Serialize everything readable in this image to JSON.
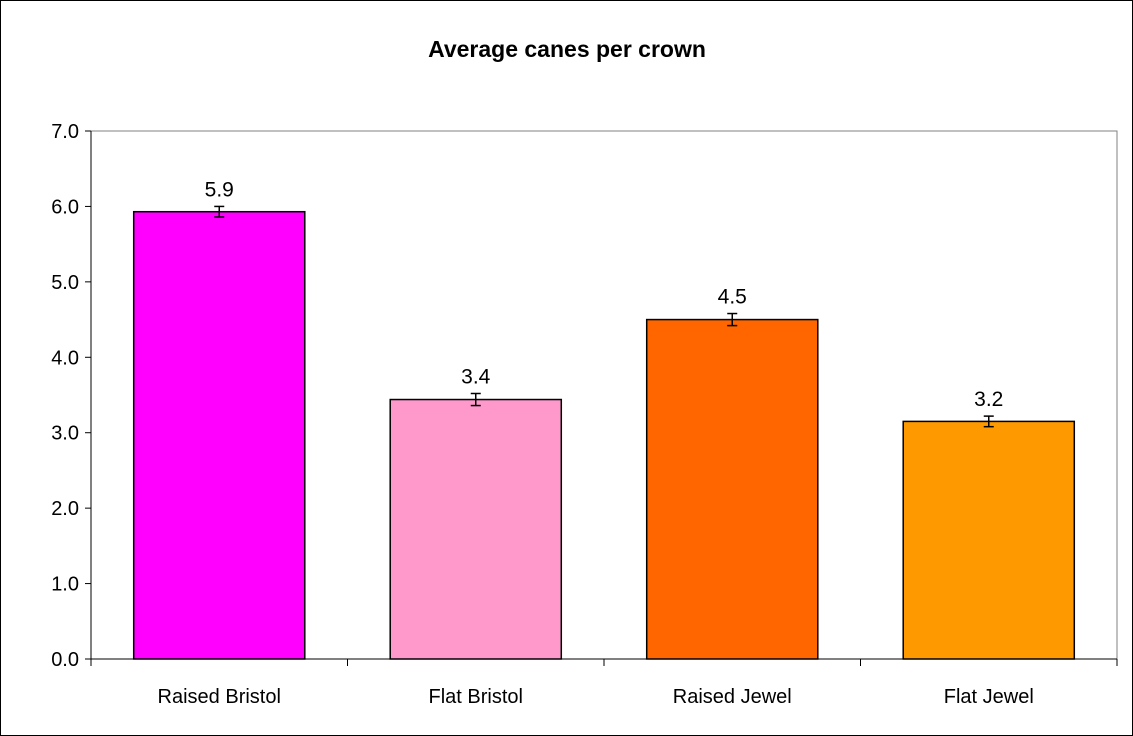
{
  "chart_data": {
    "type": "bar",
    "title": "Average canes per crown",
    "xlabel": "",
    "ylabel": "",
    "categories": [
      "Raised Bristol",
      "Flat Bristol",
      "Raised Jewel",
      "Flat Jewel"
    ],
    "values": [
      5.93,
      3.44,
      4.5,
      3.15
    ],
    "data_labels": [
      "5.9",
      "3.4",
      "4.5",
      "3.2"
    ],
    "error": [
      0.07,
      0.08,
      0.08,
      0.07
    ],
    "colors": [
      "#ff00ff",
      "#ff99cc",
      "#ff6600",
      "#ff9900"
    ],
    "ylim": [
      0,
      7
    ],
    "yticks": [
      0,
      1,
      2,
      3,
      4,
      5,
      6,
      7
    ],
    "ytick_labels": [
      "0.0",
      "1.0",
      "2.0",
      "3.0",
      "4.0",
      "5.0",
      "6.0",
      "7.0"
    ],
    "grid": false,
    "legend": "none"
  }
}
